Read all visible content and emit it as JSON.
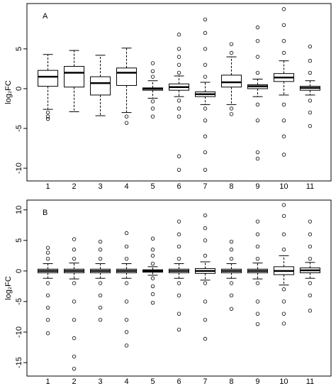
{
  "chart_data": [
    {
      "type": "box",
      "title": "A",
      "ylabel": "log₂FC",
      "categories": [
        "1",
        "2",
        "3",
        "4",
        "5",
        "6",
        "7",
        "8",
        "9",
        "10",
        "11"
      ],
      "ylim": [
        -11.6,
        10.7
      ],
      "yticks": [
        5,
        0,
        -5,
        -10
      ],
      "boxes": [
        {
          "min": -2.6,
          "q1": 0.3,
          "median": 1.5,
          "q3": 2.3,
          "max": 4.3,
          "outliers": [
            -3.0,
            -3.5,
            -3.8
          ]
        },
        {
          "min": -2.9,
          "q1": 0.2,
          "median": 2.0,
          "q3": 2.8,
          "max": 4.8,
          "outliers": []
        },
        {
          "min": -3.4,
          "q1": -0.8,
          "median": 0.7,
          "q3": 1.5,
          "max": 4.2,
          "outliers": []
        },
        {
          "min": -3.0,
          "q1": 0.4,
          "median": 2.0,
          "q3": 2.6,
          "max": 5.1,
          "outliers": [
            -3.5,
            -4.3
          ]
        },
        {
          "min": -1.2,
          "q1": -0.2,
          "median": 0,
          "q3": 0.1,
          "max": 1.0,
          "outliers": [
            1.5,
            2.2,
            3.2,
            -1.6,
            -2.5,
            -3.5
          ]
        },
        {
          "min": -1.0,
          "q1": -0.2,
          "median": 0.2,
          "q3": 0.6,
          "max": 1.6,
          "outliers": [
            2,
            3,
            4,
            5,
            6.8,
            -1.5,
            -2.5,
            -3.5,
            -8.5,
            -10.2
          ]
        },
        {
          "min": -2.0,
          "q1": -1.0,
          "median": -0.7,
          "q3": -0.4,
          "max": 0.8,
          "outliers": [
            1.5,
            3,
            5,
            7,
            8.7,
            -2.5,
            -4,
            -6,
            -8,
            -10.2
          ]
        },
        {
          "min": -2.0,
          "q1": 0.2,
          "median": 0.8,
          "q3": 1.7,
          "max": 4.0,
          "outliers": [
            4.5,
            5.6,
            -2.5,
            -3.2
          ]
        },
        {
          "min": -1.0,
          "q1": 0,
          "median": 0.3,
          "q3": 0.5,
          "max": 1.2,
          "outliers": [
            2,
            4,
            6,
            7.7,
            -2,
            -4,
            -8,
            -8.8
          ]
        },
        {
          "min": -0.8,
          "q1": 0.9,
          "median": 1.4,
          "q3": 1.9,
          "max": 3.5,
          "outliers": [
            4.5,
            6,
            8,
            10,
            -2,
            -4,
            -6,
            -8.3
          ]
        },
        {
          "min": -0.8,
          "q1": -0.2,
          "median": 0.1,
          "q3": 0.3,
          "max": 1.0,
          "outliers": [
            2,
            3.5,
            5.3,
            -1.5,
            -3,
            -4.7
          ]
        }
      ]
    },
    {
      "type": "box",
      "title": "B",
      "ylabel": "log₂FC",
      "categories": [
        "1",
        "2",
        "3",
        "4",
        "5",
        "6",
        "7",
        "8",
        "9",
        "10",
        "11"
      ],
      "ylim": [
        -17.2,
        11.6
      ],
      "yticks": [
        10,
        5,
        0,
        -5,
        -10,
        -15
      ],
      "boxes": [
        {
          "min": -1.2,
          "q1": -0.3,
          "median": 0,
          "q3": 0.3,
          "max": 1.2,
          "outliers": [
            2,
            3,
            3.8,
            -2,
            -4,
            -6,
            -8,
            -10.2
          ]
        },
        {
          "min": -1.3,
          "q1": -0.3,
          "median": 0,
          "q3": 0.3,
          "max": 1.3,
          "outliers": [
            2,
            3.5,
            5.2,
            -2,
            -5,
            -8,
            -11,
            -14,
            -16
          ]
        },
        {
          "min": -1.2,
          "q1": -0.3,
          "median": 0,
          "q3": 0.3,
          "max": 1.2,
          "outliers": [
            2,
            3.5,
            4.8,
            -2,
            -4,
            -6,
            -8
          ]
        },
        {
          "min": -1.2,
          "q1": -0.3,
          "median": 0,
          "q3": 0.3,
          "max": 1.2,
          "outliers": [
            2,
            4,
            6.2,
            -2,
            -5,
            -8,
            -10,
            -12.2
          ]
        },
        {
          "min": -0.7,
          "q1": -0.2,
          "median": 0,
          "q3": 0.2,
          "max": 0.7,
          "outliers": [
            1.2,
            2.5,
            3.5,
            5.3,
            -1.2,
            -2.5,
            -3.8,
            -5.2
          ]
        },
        {
          "min": -1.2,
          "q1": -0.3,
          "median": 0,
          "q3": 0.3,
          "max": 1.2,
          "outliers": [
            2,
            4,
            6,
            8.1,
            -2,
            -4,
            -7,
            -9.6
          ]
        },
        {
          "min": -1.5,
          "q1": -0.4,
          "median": 0,
          "q3": 0.4,
          "max": 1.5,
          "outliers": [
            2.5,
            5,
            7,
            9.1,
            -2,
            -5,
            -8,
            -11.1
          ]
        },
        {
          "min": -1.2,
          "q1": -0.3,
          "median": 0,
          "q3": 0.3,
          "max": 1.2,
          "outliers": [
            2,
            3.5,
            4.8,
            -2,
            -4,
            -6.2
          ]
        },
        {
          "min": -1.3,
          "q1": -0.3,
          "median": 0,
          "q3": 0.3,
          "max": 1.3,
          "outliers": [
            2,
            4,
            6,
            8.1,
            -2,
            -5,
            -7,
            -8.7
          ]
        },
        {
          "min": -2.3,
          "q1": -0.6,
          "median": 0,
          "q3": 0.7,
          "max": 2.5,
          "outliers": [
            3.5,
            6,
            9,
            10.8,
            -3,
            -5,
            -7,
            -8.6
          ]
        },
        {
          "min": -1.2,
          "q1": -0.3,
          "median": 0.1,
          "q3": 0.5,
          "max": 1.4,
          "outliers": [
            2,
            4,
            6,
            8.1,
            -2,
            -4,
            -6.5
          ]
        }
      ]
    }
  ]
}
